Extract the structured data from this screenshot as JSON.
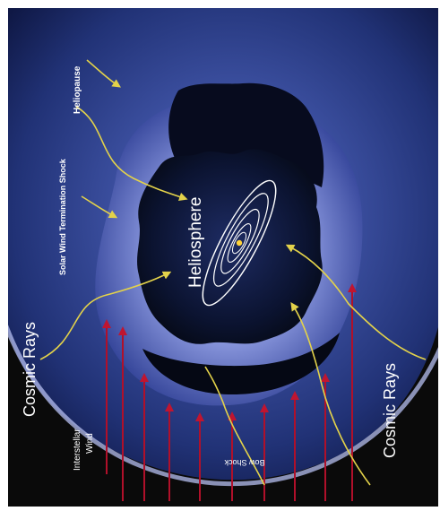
{
  "diagram": {
    "labels": {
      "heliopause": "Heliopause",
      "termination_shock": "Solar Wind Termination Shock",
      "heliosphere": "Heliosphere",
      "cosmic_rays_left": "Cosmic Rays",
      "cosmic_rays_right": "Cosmic Rays",
      "interstellar_wind": "Interstellar Wind",
      "interstellar_wind_line1": "Interstellar",
      "interstellar_wind_line2": "Wind",
      "bow_shock": "Bow Shock"
    },
    "colors": {
      "background": "#0a0a0a",
      "outer_region": "#2a3c80",
      "glow": "#9aa6e4",
      "cavity": "#0b1330",
      "arrow_yellow": "#e3d24a",
      "wind_red": "#b0102a",
      "orbit": "#ffffff",
      "sun": "#ffd23a"
    },
    "icons": [
      "red-wind-arrow",
      "yellow-pointer-arrow",
      "orbit-ellipse",
      "sun-dot"
    ]
  }
}
